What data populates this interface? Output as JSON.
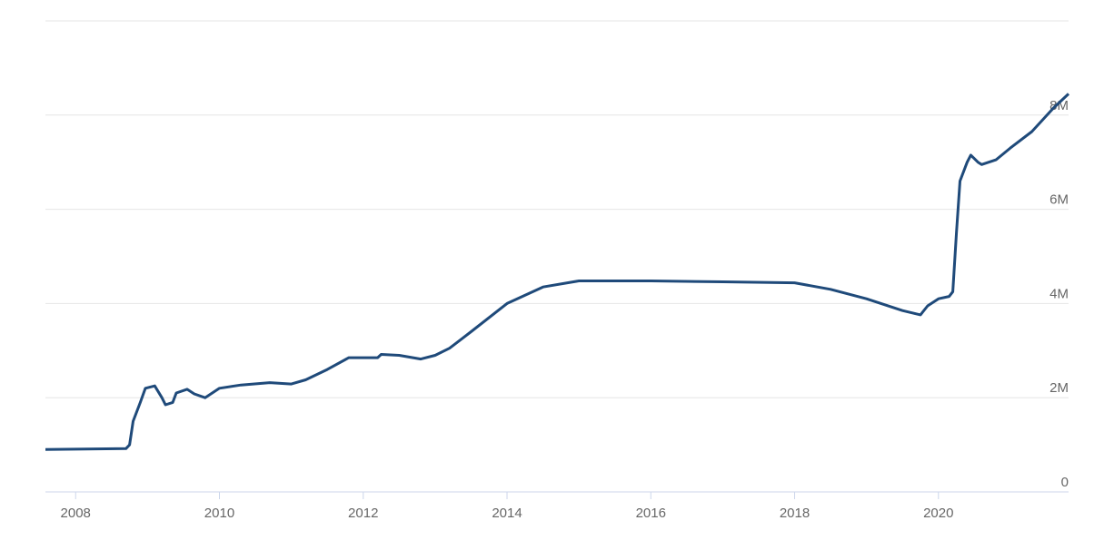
{
  "chart_data": {
    "type": "line",
    "x": [
      2007.58,
      2008.7,
      2008.75,
      2008.8,
      2008.9,
      2008.97,
      2009.1,
      2009.2,
      2009.25,
      2009.35,
      2009.4,
      2009.55,
      2009.65,
      2009.8,
      2009.9,
      2010.0,
      2010.3,
      2010.7,
      2011.0,
      2011.2,
      2011.5,
      2011.8,
      2012.2,
      2012.25,
      2012.5,
      2012.8,
      2013.0,
      2013.2,
      2013.5,
      2014.0,
      2014.5,
      2015.0,
      2016.0,
      2017.0,
      2018.0,
      2018.5,
      2019.0,
      2019.5,
      2019.75,
      2019.85,
      2020.0,
      2020.15,
      2020.2,
      2020.25,
      2020.3,
      2020.4,
      2020.45,
      2020.55,
      2020.6,
      2020.8,
      2021.0,
      2021.3,
      2021.6,
      2021.81
    ],
    "series": [
      {
        "color": "#1f4a7a",
        "values": [
          0.9,
          0.92,
          1.0,
          1.5,
          1.9,
          2.2,
          2.25,
          2.0,
          1.85,
          1.9,
          2.1,
          2.18,
          2.08,
          2.0,
          2.1,
          2.2,
          2.27,
          2.32,
          2.29,
          2.38,
          2.6,
          2.85,
          2.85,
          2.92,
          2.9,
          2.82,
          2.9,
          3.05,
          3.4,
          4.0,
          4.35,
          4.48,
          4.48,
          4.46,
          4.44,
          4.3,
          4.1,
          3.85,
          3.76,
          3.95,
          4.1,
          4.15,
          4.25,
          5.5,
          6.6,
          7.0,
          7.15,
          7.0,
          6.95,
          7.05,
          7.3,
          7.65,
          8.15,
          8.45
        ]
      }
    ],
    "xlim": [
      2007.58,
      2021.81
    ],
    "xticks": [
      2008,
      2010,
      2012,
      2014,
      2016,
      2018,
      2020
    ],
    "ylim": [
      0,
      10
    ],
    "yticks": [
      0,
      {
        "value": 2,
        "label": "2M"
      },
      {
        "value": 4,
        "label": "4M"
      },
      {
        "value": 6,
        "label": "6M"
      },
      {
        "value": 8,
        "label": "8M"
      }
    ],
    "grid": true
  }
}
